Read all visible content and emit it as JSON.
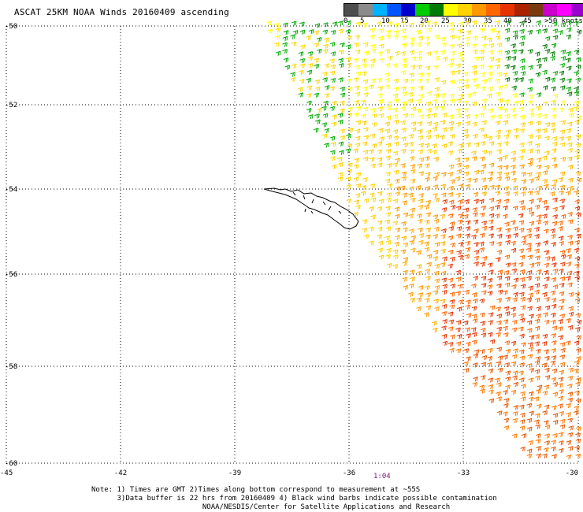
{
  "title": "ASCAT 25KM NOAA Winds 20160409 ascending",
  "legend": {
    "colors": [
      "#4d4d4d",
      "#8b8b8b",
      "#00b3ff",
      "#0055ff",
      "#0000cc",
      "#00cc00",
      "#007a00",
      "#ffff00",
      "#ffd400",
      "#ff9900",
      "#ff6600",
      "#e63300",
      "#aa2200",
      "#7a3a10",
      "#cc00cc",
      "#ff00ff",
      "#9900cc",
      "#4b0082"
    ],
    "tick_labels": [
      "0",
      "5",
      "10",
      "15",
      "20",
      "25",
      "30",
      "35",
      "40",
      "45",
      ">50 knots"
    ]
  },
  "axes": {
    "lat_labels": [
      "-50",
      "-52",
      "-54",
      "-56",
      "-58",
      "-60"
    ],
    "lon_labels": [
      "-45",
      "-42",
      "-39",
      "-36",
      "-33",
      "-30"
    ]
  },
  "time_label": "1:04",
  "notes": [
    "Note: 1) Times are GMT 2)Times along bottom correspond to measurement at ~55S",
    "      3)Data buffer is 22 hrs from 20160409 4) Black wind barbs indicate possible contamination",
    "                          NOAA/NESDIS/Center for Satellite Applications and Research"
  ]
}
